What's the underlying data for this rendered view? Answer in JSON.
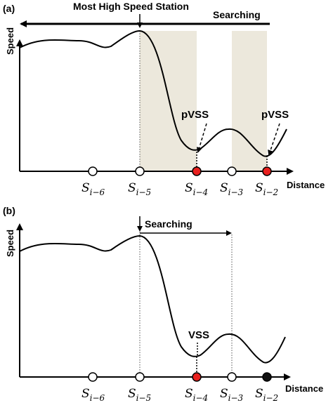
{
  "panels": [
    {
      "id": "a",
      "label": "(a)",
      "top_label": "Most High Speed Station",
      "search_label": "Searching",
      "ylabel": "Speed",
      "xlabel": "Distance",
      "annotations": [
        "pVSS",
        "pVSS"
      ],
      "stations": [
        {
          "base": "S",
          "sub": "i−6",
          "color": "#ffffff"
        },
        {
          "base": "S",
          "sub": "i−5",
          "color": "#ffffff"
        },
        {
          "base": "S",
          "sub": "i−4",
          "color": "#e8201e"
        },
        {
          "base": "S",
          "sub": "i−3",
          "color": "#ffffff"
        },
        {
          "base": "S",
          "sub": "i−2",
          "color": "#e8201e"
        }
      ]
    },
    {
      "id": "b",
      "label": "(b)",
      "search_label": "Searching",
      "ylabel": "Speed",
      "xlabel": "Distance",
      "annotations": [
        "VSS"
      ],
      "stations": [
        {
          "base": "S",
          "sub": "i−6",
          "color": "#ffffff"
        },
        {
          "base": "S",
          "sub": "i−5",
          "color": "#ffffff"
        },
        {
          "base": "S",
          "sub": "i−4",
          "color": "#e8201e"
        },
        {
          "base": "S",
          "sub": "i−3",
          "color": "#ffffff"
        },
        {
          "base": "S",
          "sub": "i−2",
          "color": "#111111"
        }
      ]
    }
  ],
  "colors": {
    "shade": "#ece8dc",
    "red_station": "#e8201e",
    "black_station": "#111111"
  }
}
